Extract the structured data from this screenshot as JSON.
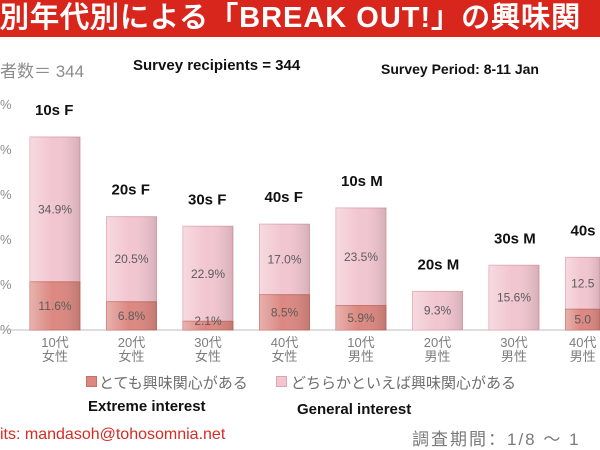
{
  "banner": {
    "title": "別年代別による「BREAK OUT!」の興味関",
    "background_color": "#d8261d",
    "text_color": "#ffffff"
  },
  "header": {
    "respondents_jp": "者数＝ 344",
    "recipients_en": "Survey recipients = 344",
    "period_en": "Survey Period: 8-11 Jan"
  },
  "chart_data": {
    "type": "bar",
    "stacked": true,
    "unit": "%",
    "categories": [
      [
        "10代",
        "女性"
      ],
      [
        "20代",
        "女性"
      ],
      [
        "30代",
        "女性"
      ],
      [
        "40代",
        "女性"
      ],
      [
        "10代",
        "男性"
      ],
      [
        "20代",
        "男性"
      ],
      [
        "30代",
        "男性"
      ],
      [
        "40代",
        "男性"
      ]
    ],
    "category_labels_en": [
      "10s F",
      "20s F",
      "30s F",
      "40s F",
      "10s M",
      "20s M",
      "30s M",
      "40s"
    ],
    "y_tick_labels": [
      "%",
      "%",
      "%",
      "%",
      "%",
      "%"
    ],
    "series": [
      {
        "name": "とても興味関心がある",
        "color": "#dc8881",
        "values": [
          11.6,
          6.8,
          2.1,
          8.5,
          5.9,
          null,
          null,
          5.0
        ],
        "labels": [
          "11.6%",
          "6.8%",
          "2.1%",
          "8.5%",
          "5.9%",
          null,
          null,
          "5.0"
        ]
      },
      {
        "name": "どちらかといえば興味関心がある",
        "color": "#f2c6d0",
        "values": [
          34.9,
          20.5,
          22.9,
          17.0,
          23.5,
          9.3,
          15.6,
          12.5
        ],
        "labels": [
          "34.9%",
          "20.5%",
          "22.9%",
          "17.0%",
          "23.5%",
          "9.3%",
          "15.6%",
          "12.5"
        ]
      }
    ],
    "legend_en": [
      "Extreme interest",
      "General interest"
    ],
    "legend_position": "bottom"
  },
  "footer": {
    "credits": "its: mandasoh@tohosomnia.net",
    "credits_color": "#d62b22",
    "period_jp": "調査期間：1/8 ～ 1"
  }
}
